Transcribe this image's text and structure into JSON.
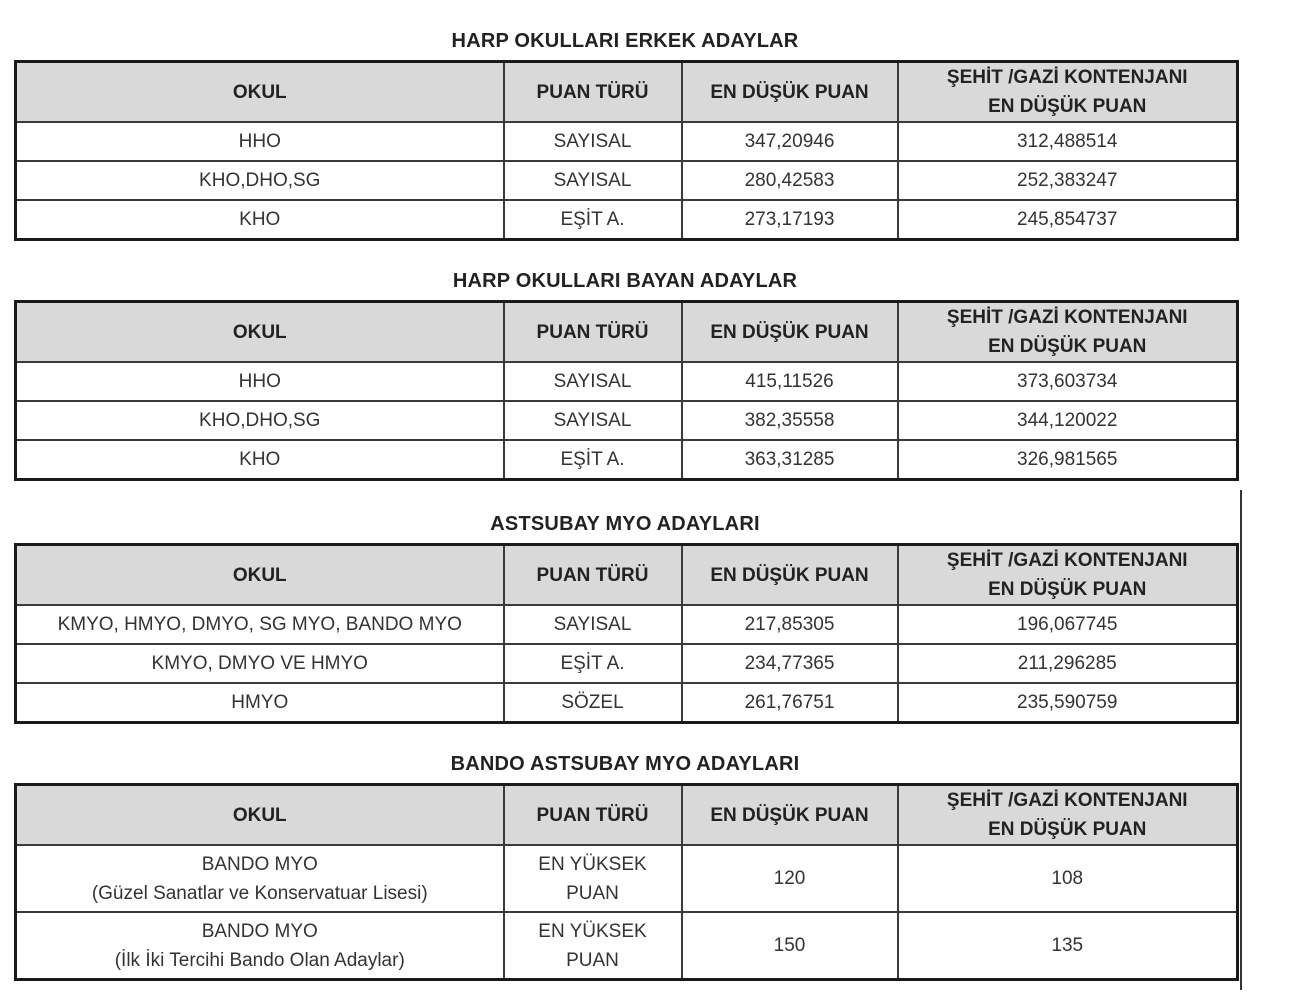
{
  "columns": [
    "OKUL",
    "PUAN TÜRÜ",
    "EN DÜŞÜK PUAN",
    "ŞEHİT /GAZİ KONTENJANI\nEN DÜŞÜK PUAN"
  ],
  "sections": [
    {
      "title": "HARP OKULLARI ERKEK ADAYLAR",
      "rows": [
        [
          "HHO",
          "SAYISAL",
          "347,20946",
          "312,488514"
        ],
        [
          "KHO,DHO,SG",
          "SAYISAL",
          "280,42583",
          "252,383247"
        ],
        [
          "KHO",
          "EŞİT A.",
          "273,17193",
          "245,854737"
        ]
      ]
    },
    {
      "title": "HARP OKULLARI BAYAN ADAYLAR",
      "rows": [
        [
          "HHO",
          "SAYISAL",
          "415,11526",
          "373,603734"
        ],
        [
          "KHO,DHO,SG",
          "SAYISAL",
          "382,35558",
          "344,120022"
        ],
        [
          "KHO",
          "EŞİT A.",
          "363,31285",
          "326,981565"
        ]
      ]
    },
    {
      "title": "ASTSUBAY MYO ADAYLARI",
      "rows": [
        [
          "KMYO, HMYO, DMYO, SG MYO, BANDO MYO",
          "SAYISAL",
          "217,85305",
          "196,067745"
        ],
        [
          "KMYO, DMYO VE HMYO",
          "EŞİT A.",
          "234,77365",
          "211,296285"
        ],
        [
          "HMYO",
          "SÖZEL",
          "261,76751",
          "235,590759"
        ]
      ]
    },
    {
      "title": "BANDO ASTSUBAY MYO ADAYLARI",
      "rows": [
        [
          "BANDO MYO\n(Güzel Sanatlar ve Konservatuar Lisesi)",
          "EN YÜKSEK\nPUAN",
          "120",
          "108"
        ],
        [
          "BANDO MYO\n(İlk İki Tercihi Bando Olan Adaylar)",
          "EN YÜKSEK\nPUAN",
          "150",
          "135"
        ]
      ]
    }
  ]
}
